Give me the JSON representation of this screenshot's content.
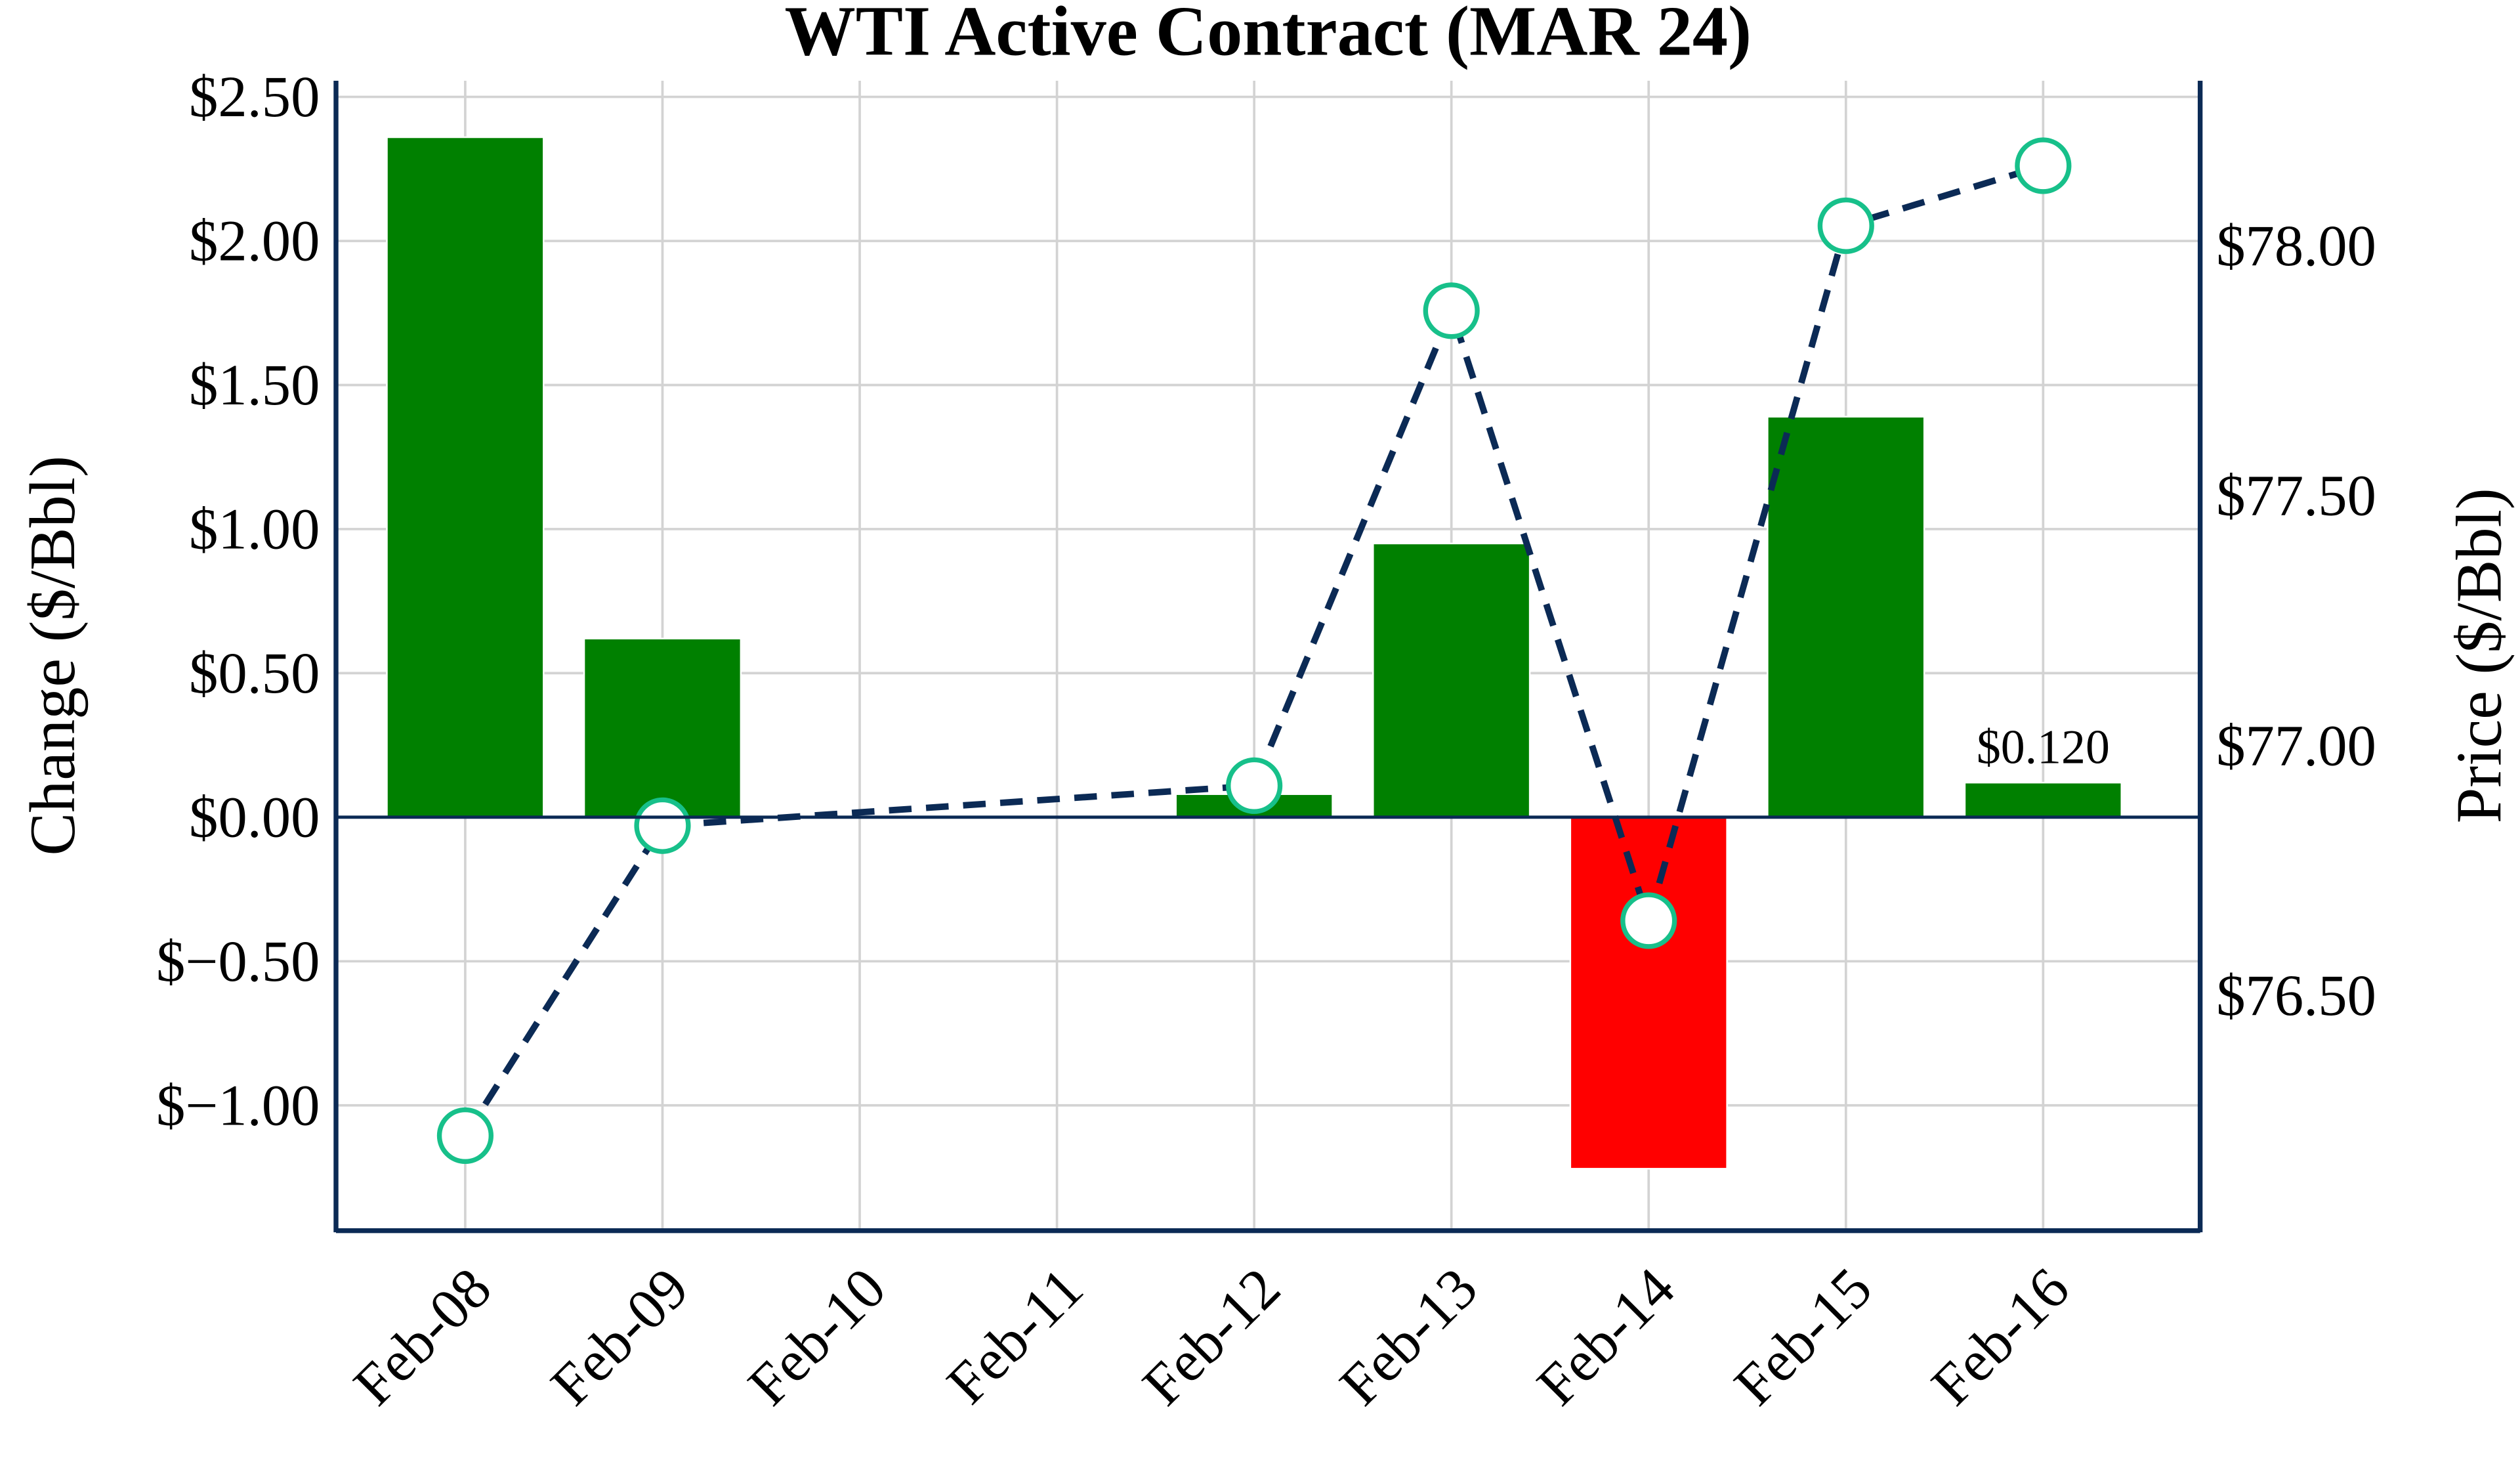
{
  "chart_data": {
    "type": "bar",
    "title": "WTI Active Contract (MAR 24)",
    "xlabel": "",
    "ylabel": "Change ($/Bbl)",
    "y2label": "Price ($/Bbl)",
    "categories": [
      "Feb-08",
      "Feb-09",
      "Feb-10",
      "Feb-11",
      "Feb-12",
      "Feb-13",
      "Feb-14",
      "Feb-15",
      "Feb-16"
    ],
    "series": [
      {
        "name": "Change",
        "type": "bar",
        "axis": "left",
        "values": [
          2.36,
          0.62,
          null,
          null,
          0.08,
          0.95,
          -1.22,
          1.39,
          0.12
        ]
      },
      {
        "name": "Price",
        "type": "line",
        "axis": "right",
        "values": [
          76.22,
          76.84,
          null,
          null,
          76.92,
          77.87,
          76.65,
          78.04,
          78.16
        ]
      }
    ],
    "ylim": [
      -1.435,
      2.556
    ],
    "y2lim": [
      76.03,
      78.33
    ],
    "yticks": [
      2.5,
      2.0,
      1.5,
      1.0,
      0.5,
      0.0,
      -0.5,
      -1.0
    ],
    "ytick_labels": [
      "$2.50",
      "$2.00",
      "$1.50",
      "$1.00",
      "$0.50",
      "$0.00",
      "$−0.50",
      "$−1.00"
    ],
    "y2ticks": [
      78.0,
      77.5,
      77.0,
      76.5
    ],
    "y2tick_labels": [
      "$78.00",
      "$77.50",
      "$77.00",
      "$76.50"
    ],
    "annotation": {
      "category": "Feb-16",
      "text": "$0.120"
    },
    "grid": true,
    "colors": {
      "positive": "#008000",
      "negative": "#ff0000",
      "line": "#0b2a55",
      "marker": "#17c08a",
      "axis": "#0b2a55",
      "grid": "#d3d3d3"
    }
  }
}
